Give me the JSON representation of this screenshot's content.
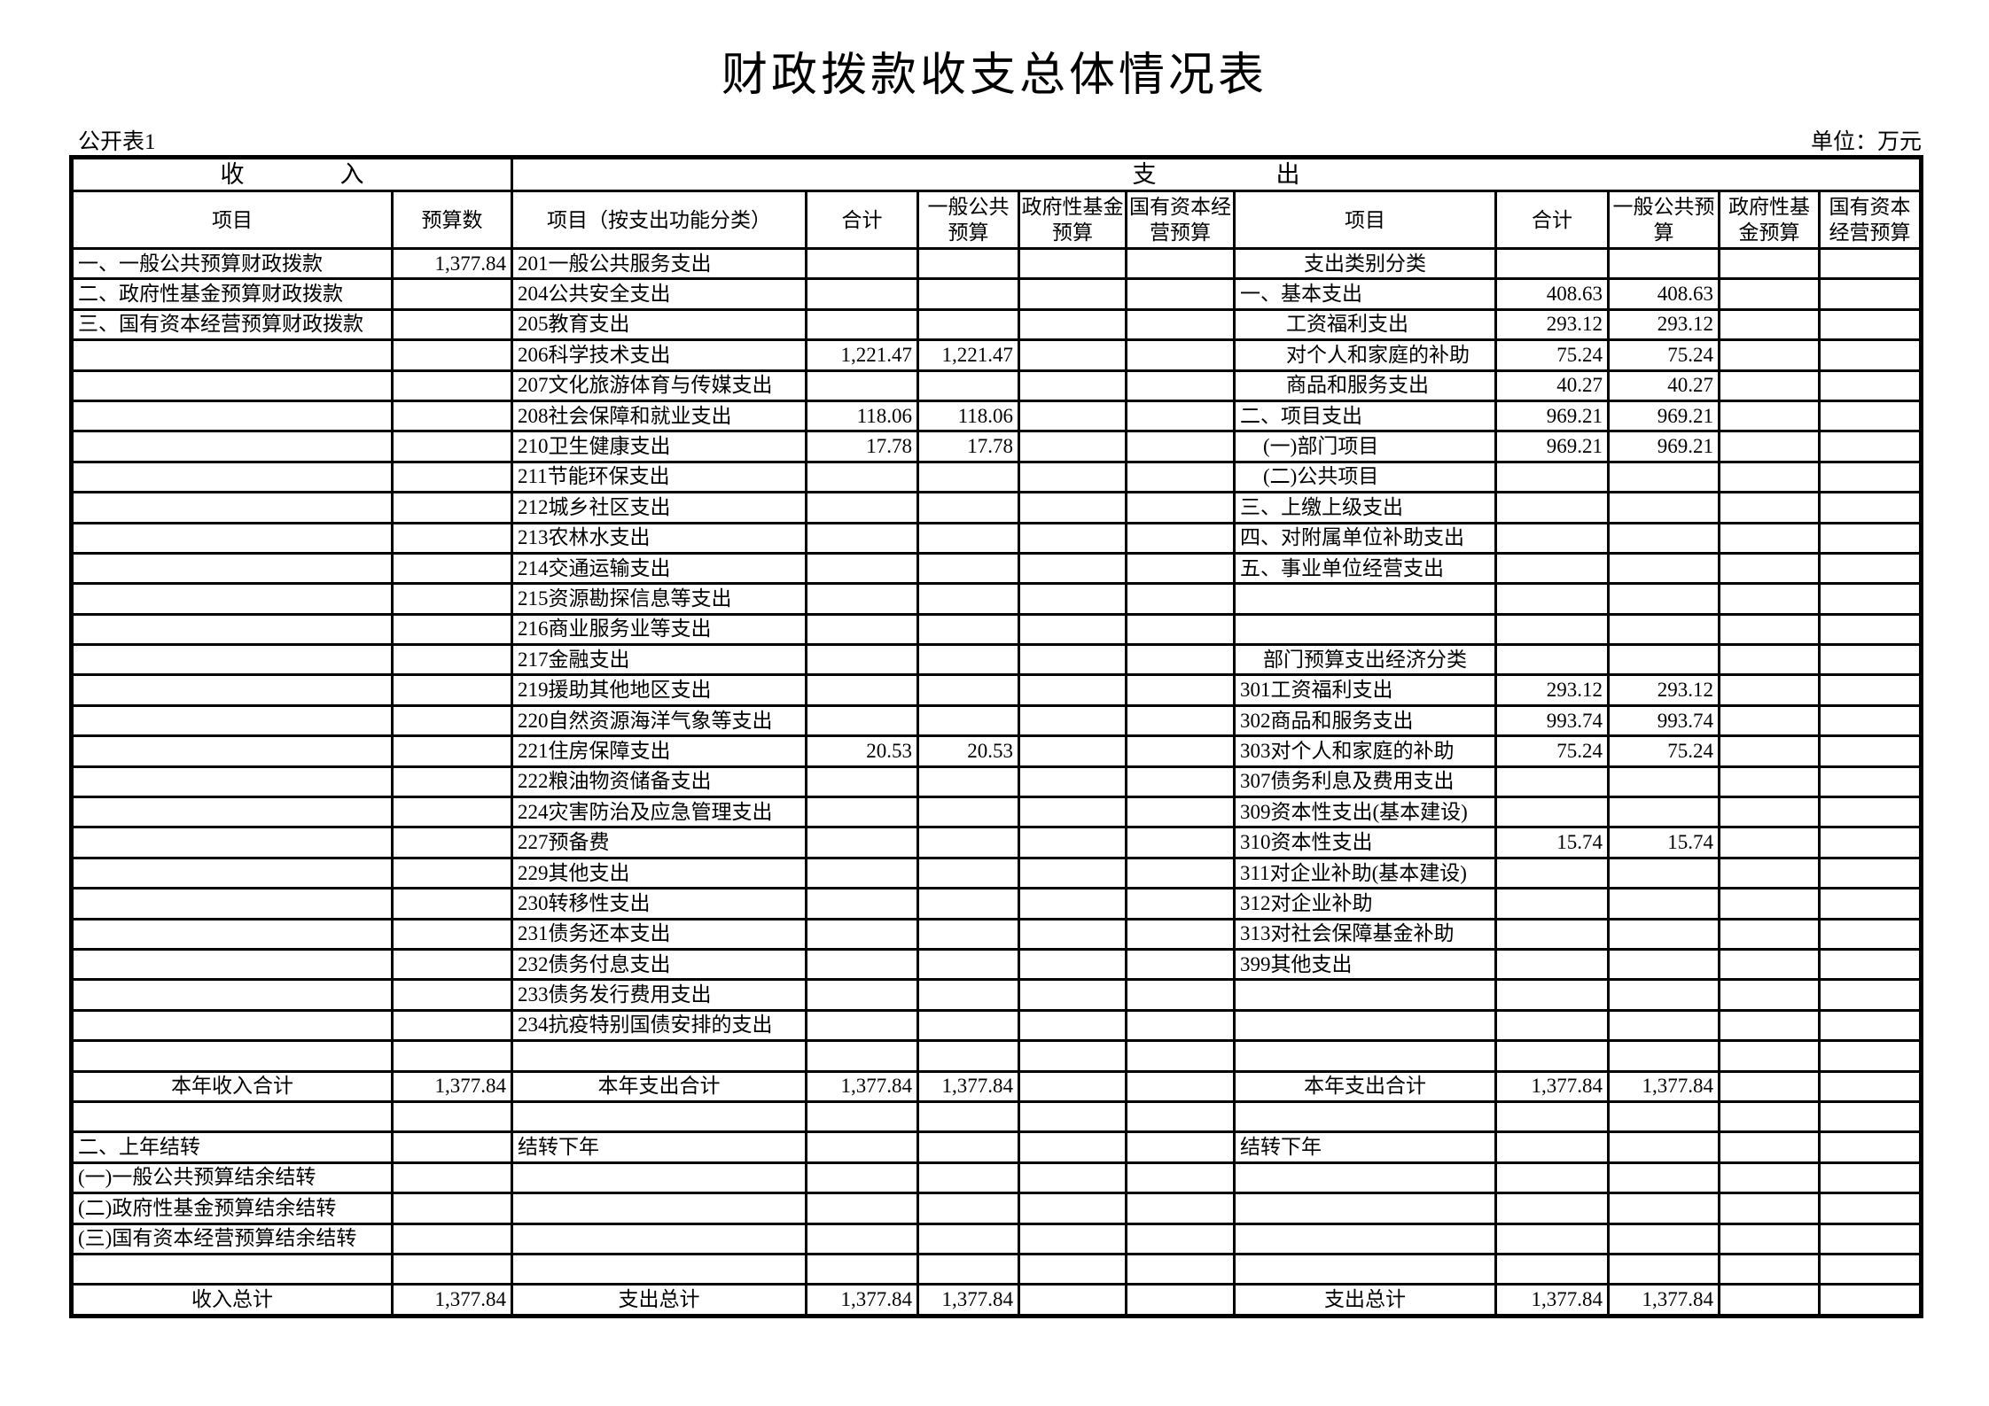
{
  "page": {
    "title": "财政拨款收支总体情况表",
    "sheet_label": "公开表1",
    "unit_label": "单位：万元"
  },
  "table": {
    "group_headers": {
      "income": "收　　　　入",
      "expenditure": "支　　　　　出"
    },
    "columns": [
      "项目",
      "预算数",
      "项目（按支出功能分类）",
      "合计",
      "一般公共预算",
      "政府性基金预算",
      "国有资本经营预算",
      "项目",
      "合计",
      "一般公共预算",
      "政府性基金预算",
      "国有资本经营预算"
    ],
    "rows": [
      [
        "一、一般公共预算财政拨款",
        "1,377.84",
        "201一般公共服务支出",
        "",
        "",
        "",
        "",
        {
          "t": "支出类别分类",
          "c": 1
        },
        "",
        "",
        "",
        ""
      ],
      [
        "二、政府性基金预算财政拨款",
        "",
        "204公共安全支出",
        "",
        "",
        "",
        "",
        "一、基本支出",
        "408.63",
        "408.63",
        "",
        ""
      ],
      [
        "三、国有资本经营预算财政拨款",
        "",
        "205教育支出",
        "",
        "",
        "",
        "",
        {
          "t": "工资福利支出",
          "i": 2
        },
        "293.12",
        "293.12",
        "",
        ""
      ],
      [
        "",
        "",
        "206科学技术支出",
        "1,221.47",
        "1,221.47",
        "",
        "",
        {
          "t": "对个人和家庭的补助",
          "i": 2
        },
        "75.24",
        "75.24",
        "",
        ""
      ],
      [
        "",
        "",
        "207文化旅游体育与传媒支出",
        "",
        "",
        "",
        "",
        {
          "t": "商品和服务支出",
          "i": 2
        },
        "40.27",
        "40.27",
        "",
        ""
      ],
      [
        "",
        "",
        "208社会保障和就业支出",
        "118.06",
        "118.06",
        "",
        "",
        "二、项目支出",
        "969.21",
        "969.21",
        "",
        ""
      ],
      [
        "",
        "",
        "210卫生健康支出",
        "17.78",
        "17.78",
        "",
        "",
        {
          "t": "(一)部门项目",
          "i": 1
        },
        "969.21",
        "969.21",
        "",
        ""
      ],
      [
        "",
        "",
        "211节能环保支出",
        "",
        "",
        "",
        "",
        {
          "t": "(二)公共项目",
          "i": 1
        },
        "",
        "",
        "",
        ""
      ],
      [
        "",
        "",
        "212城乡社区支出",
        "",
        "",
        "",
        "",
        "三、上缴上级支出",
        "",
        "",
        "",
        ""
      ],
      [
        "",
        "",
        "213农林水支出",
        "",
        "",
        "",
        "",
        "四、对附属单位补助支出",
        "",
        "",
        "",
        ""
      ],
      [
        "",
        "",
        "214交通运输支出",
        "",
        "",
        "",
        "",
        "五、事业单位经营支出",
        "",
        "",
        "",
        ""
      ],
      [
        "",
        "",
        "215资源勘探信息等支出",
        "",
        "",
        "",
        "",
        "",
        "",
        "",
        "",
        ""
      ],
      [
        "",
        "",
        "216商业服务业等支出",
        "",
        "",
        "",
        "",
        "",
        "",
        "",
        "",
        ""
      ],
      [
        "",
        "",
        "217金融支出",
        "",
        "",
        "",
        "",
        {
          "t": "部门预算支出经济分类",
          "c": 1
        },
        "",
        "",
        "",
        ""
      ],
      [
        "",
        "",
        "219援助其他地区支出",
        "",
        "",
        "",
        "",
        "301工资福利支出",
        "293.12",
        "293.12",
        "",
        ""
      ],
      [
        "",
        "",
        "220自然资源海洋气象等支出",
        "",
        "",
        "",
        "",
        "302商品和服务支出",
        "993.74",
        "993.74",
        "",
        ""
      ],
      [
        "",
        "",
        "221住房保障支出",
        "20.53",
        "20.53",
        "",
        "",
        "303对个人和家庭的补助",
        "75.24",
        "75.24",
        "",
        ""
      ],
      [
        "",
        "",
        "222粮油物资储备支出",
        "",
        "",
        "",
        "",
        "307债务利息及费用支出",
        "",
        "",
        "",
        ""
      ],
      [
        "",
        "",
        "224灾害防治及应急管理支出",
        "",
        "",
        "",
        "",
        "309资本性支出(基本建设)",
        "",
        "",
        "",
        ""
      ],
      [
        "",
        "",
        "227预备费",
        "",
        "",
        "",
        "",
        "310资本性支出",
        "15.74",
        "15.74",
        "",
        ""
      ],
      [
        "",
        "",
        "229其他支出",
        "",
        "",
        "",
        "",
        "311对企业补助(基本建设)",
        "",
        "",
        "",
        ""
      ],
      [
        "",
        "",
        "230转移性支出",
        "",
        "",
        "",
        "",
        "312对企业补助",
        "",
        "",
        "",
        ""
      ],
      [
        "",
        "",
        "231债务还本支出",
        "",
        "",
        "",
        "",
        "313对社会保障基金补助",
        "",
        "",
        "",
        ""
      ],
      [
        "",
        "",
        "232债务付息支出",
        "",
        "",
        "",
        "",
        "399其他支出",
        "",
        "",
        "",
        ""
      ],
      [
        "",
        "",
        "233债务发行费用支出",
        "",
        "",
        "",
        "",
        "",
        "",
        "",
        "",
        ""
      ],
      [
        "",
        "",
        "234抗疫特别国债安排的支出",
        "",
        "",
        "",
        "",
        "",
        "",
        "",
        "",
        ""
      ],
      [
        "",
        "",
        "",
        "",
        "",
        "",
        "",
        "",
        "",
        "",
        "",
        ""
      ],
      [
        {
          "t": "本年收入合计",
          "c": 1
        },
        "1,377.84",
        {
          "t": "本年支出合计",
          "c": 1
        },
        "1,377.84",
        "1,377.84",
        "",
        "",
        {
          "t": "本年支出合计",
          "c": 1
        },
        "1,377.84",
        "1,377.84",
        "",
        ""
      ],
      [
        "",
        "",
        "",
        "",
        "",
        "",
        "",
        "",
        "",
        "",
        "",
        ""
      ],
      [
        "二、上年结转",
        "",
        "结转下年",
        "",
        "",
        "",
        "",
        "结转下年",
        "",
        "",
        "",
        ""
      ],
      [
        "(一)一般公共预算结余结转",
        "",
        "",
        "",
        "",
        "",
        "",
        "",
        "",
        "",
        "",
        ""
      ],
      [
        "(二)政府性基金预算结余结转",
        "",
        "",
        "",
        "",
        "",
        "",
        "",
        "",
        "",
        "",
        ""
      ],
      [
        "(三)国有资本经营预算结余结转",
        "",
        "",
        "",
        "",
        "",
        "",
        "",
        "",
        "",
        "",
        ""
      ],
      [
        "",
        "",
        "",
        "",
        "",
        "",
        "",
        "",
        "",
        "",
        "",
        ""
      ],
      [
        {
          "t": "收入总计",
          "c": 1
        },
        "1,377.84",
        {
          "t": "支出总计",
          "c": 1
        },
        "1,377.84",
        "1,377.84",
        "",
        "",
        {
          "t": "支出总计",
          "c": 1
        },
        "1,377.84",
        "1,377.84",
        "",
        ""
      ]
    ]
  }
}
